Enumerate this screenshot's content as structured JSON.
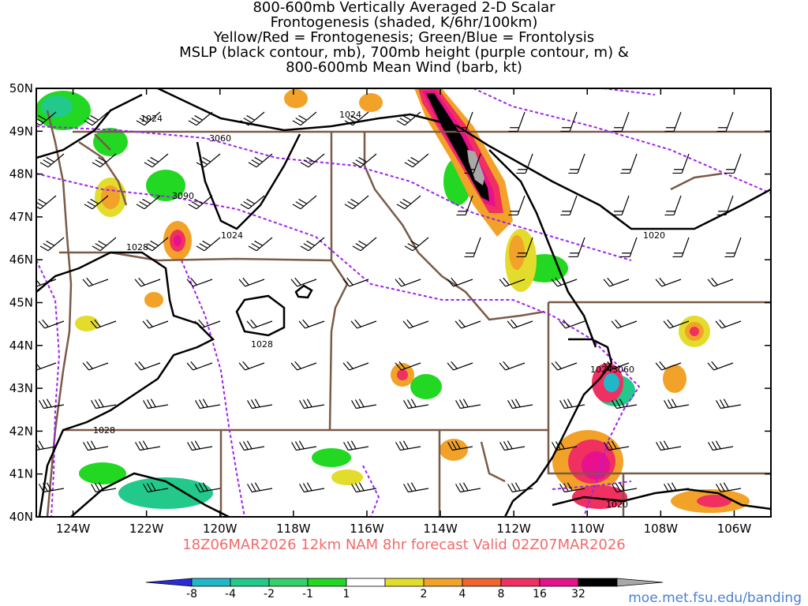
{
  "title": {
    "lines": [
      "800-600mb Vertically Averaged 2-D Scalar",
      "Frontogenesis (shaded, K/6hr/100km)",
      "Yellow/Red = Frontogenesis;  Green/Blue = Frontolysis",
      "MSLP (black contour, mb), 700mb height (purple contour, m) &",
      "800-600mb Mean Wind (barb, kt)"
    ]
  },
  "map": {
    "lat_labels": [
      "50N",
      "49N",
      "48N",
      "47N",
      "46N",
      "45N",
      "44N",
      "43N",
      "42N",
      "41N",
      "40N"
    ],
    "lon_labels": [
      "124W",
      "122W",
      "120W",
      "118W",
      "116W",
      "114W",
      "112W",
      "110W",
      "108W",
      "106W"
    ],
    "lat_range": [
      40,
      50
    ],
    "lon_range": [
      -125,
      -105
    ],
    "contour_labels": [
      "1024",
      "1024",
      "3060",
      "3090",
      "1024",
      "1028",
      "1028",
      "1024",
      "3060",
      "1020",
      "1028",
      "1020"
    ],
    "colors": {
      "mslp": "#000000",
      "height_700mb": "#a020f0",
      "borders": "#7a5a48",
      "wind_barbs": "#000000"
    }
  },
  "footer": {
    "forecast_text": "18Z06MAR2026  12km  NAM  8hr  forecast  Valid  02Z07MAR2026",
    "url": "moe.met.fsu.edu/banding"
  },
  "colorbar": {
    "labels": [
      "-8",
      "-4",
      "-2",
      "-1",
      "1",
      "2",
      "4",
      "8",
      "16",
      "32"
    ],
    "colors": [
      "#2b2bd6",
      "#20b8c8",
      "#22c98a",
      "#33d16a",
      "#22d822",
      "#ffffff",
      "#e4dc2c",
      "#f2a228",
      "#f0642e",
      "#f03060",
      "#e8108c",
      "#000000",
      "#a8a8a8"
    ]
  }
}
